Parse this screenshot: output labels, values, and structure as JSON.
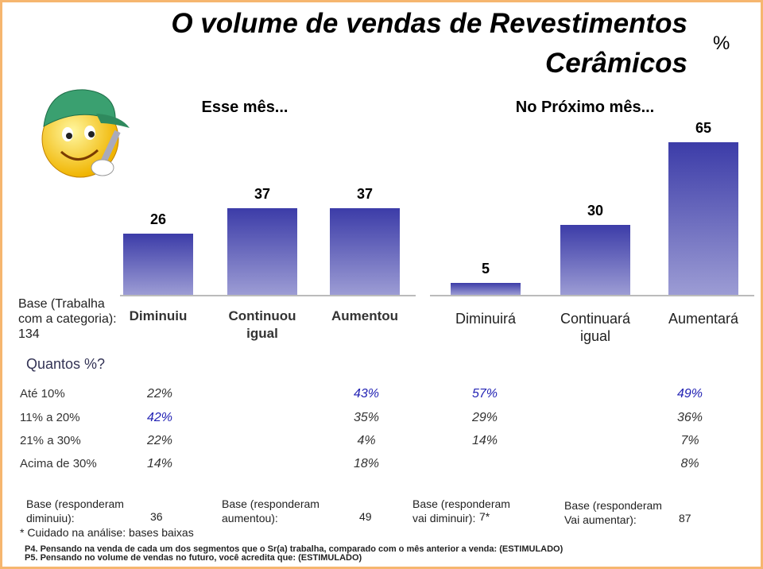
{
  "title": "O volume de vendas de Revestimentos Cerâmicos",
  "unit": "%",
  "chart_data": [
    {
      "type": "bar",
      "title": "Esse mês...",
      "categories": [
        "Diminuiu",
        "Continuou igual",
        "Aumentou"
      ],
      "values": [
        26,
        37,
        37
      ],
      "color": "#3c3ca8"
    },
    {
      "type": "bar",
      "title": "No Próximo mês...",
      "categories": [
        "Diminuirá",
        "Continuará igual",
        "Aumentará"
      ],
      "values": [
        5,
        30,
        65
      ],
      "color": "#3c3ca8"
    }
  ],
  "base_note": "Base (Trabalha com a categoria): 134",
  "question": "Quantos %?",
  "table": {
    "rows": [
      {
        "label": "Até 10%",
        "cells": [
          {
            "text": "22%",
            "color": "#333333"
          },
          {
            "text": "43%",
            "color": "#2323b4"
          },
          {
            "text": "57%",
            "color": "#2323b4"
          },
          {
            "text": "49%",
            "color": "#2323b4"
          }
        ]
      },
      {
        "label": "11% a 20%",
        "cells": [
          {
            "text": "42%",
            "color": "#2323b4"
          },
          {
            "text": "35%",
            "color": "#333333"
          },
          {
            "text": "29%",
            "color": "#333333"
          },
          {
            "text": "36%",
            "color": "#333333"
          }
        ]
      },
      {
        "label": "21% a 30%",
        "cells": [
          {
            "text": "22%",
            "color": "#333333"
          },
          {
            "text": "4%",
            "color": "#333333"
          },
          {
            "text": "14%",
            "color": "#333333"
          },
          {
            "text": "7%",
            "color": "#333333"
          }
        ]
      },
      {
        "label": "Acima de 30%",
        "cells": [
          {
            "text": "14%",
            "color": "#333333"
          },
          {
            "text": "18%",
            "color": "#333333"
          },
          null,
          {
            "text": "8%",
            "color": "#333333"
          }
        ]
      }
    ]
  },
  "bases": [
    {
      "label": "Base (responderam diminuiu):",
      "value": "36"
    },
    {
      "label": "Base (responderam aumentou):",
      "value": "49"
    },
    {
      "label": "Base (responderam vai diminuir):",
      "value": "7*"
    },
    {
      "label": "Base (responderam Vai aumentar):",
      "value": "87"
    }
  ],
  "caution": "* Cuidado na análise: bases baixas",
  "footnotes": [
    "P4. Pensando na venda de cada um dos segmentos que o Sr(a) trabalha, comparado com o mês anterior a venda: (ESTIMULADO)",
    "P5. Pensando no volume de vendas no futuro, você acredita que: (ESTIMULADO)"
  ]
}
